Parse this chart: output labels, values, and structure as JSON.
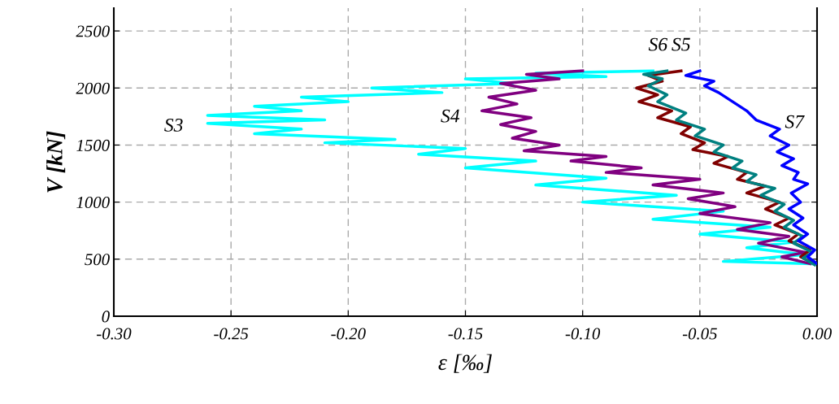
{
  "chart_data": {
    "type": "line",
    "xlabel": "ε [‰]",
    "ylabel": "V [kN]",
    "xlim": [
      -0.3,
      0.0
    ],
    "ylim": [
      0,
      2700
    ],
    "xticks": [
      {
        "value": -0.3,
        "label": "-0.30"
      },
      {
        "value": -0.25,
        "label": "-0.25"
      },
      {
        "value": -0.2,
        "label": "-0.20"
      },
      {
        "value": -0.15,
        "label": "-0.15"
      },
      {
        "value": -0.1,
        "label": "-0.10"
      },
      {
        "value": -0.05,
        "label": "-0.05"
      },
      {
        "value": 0.0,
        "label": "0.00"
      }
    ],
    "yticks": [
      0,
      500,
      1000,
      1500,
      2000,
      2500
    ],
    "grid": true,
    "line_style": "solid",
    "marker": "none",
    "series": [
      {
        "name": "S3",
        "color": "#00ffff",
        "x": [
          -0.002,
          -0.04,
          -0.005,
          -0.03,
          -0.01,
          -0.05,
          -0.02,
          -0.07,
          -0.04,
          -0.1,
          -0.06,
          -0.12,
          -0.09,
          -0.15,
          -0.12,
          -0.17,
          -0.15,
          -0.21,
          -0.18,
          -0.24,
          -0.22,
          -0.26,
          -0.21,
          -0.26,
          -0.22,
          -0.24,
          -0.2,
          -0.22,
          -0.16,
          -0.19,
          -0.13,
          -0.15,
          -0.09,
          -0.12,
          -0.07
        ],
        "values": [
          460,
          480,
          540,
          600,
          650,
          720,
          780,
          850,
          920,
          1000,
          1060,
          1150,
          1210,
          1300,
          1360,
          1420,
          1470,
          1520,
          1550,
          1600,
          1640,
          1690,
          1720,
          1760,
          1800,
          1840,
          1880,
          1920,
          1960,
          2000,
          2040,
          2080,
          2100,
          2130,
          2150
        ]
      },
      {
        "name": "S4",
        "color": "#800080",
        "x": [
          -0.003,
          -0.015,
          -0.005,
          -0.025,
          -0.012,
          -0.034,
          -0.02,
          -0.05,
          -0.035,
          -0.055,
          -0.04,
          -0.07,
          -0.05,
          -0.09,
          -0.075,
          -0.105,
          -0.09,
          -0.125,
          -0.11,
          -0.13,
          -0.12,
          -0.135,
          -0.122,
          -0.143,
          -0.128,
          -0.14,
          -0.12,
          -0.135,
          -0.11,
          -0.124,
          -0.1
        ],
        "values": [
          460,
          520,
          560,
          640,
          700,
          760,
          820,
          900,
          960,
          1030,
          1080,
          1150,
          1200,
          1260,
          1300,
          1360,
          1400,
          1450,
          1500,
          1560,
          1620,
          1680,
          1740,
          1800,
          1860,
          1920,
          1980,
          2040,
          2080,
          2120,
          2150
        ]
      },
      {
        "name": "S5",
        "color": "#800000",
        "x": [
          -0.001,
          -0.007,
          -0.003,
          -0.012,
          -0.008,
          -0.018,
          -0.012,
          -0.022,
          -0.016,
          -0.03,
          -0.022,
          -0.034,
          -0.03,
          -0.044,
          -0.038,
          -0.053,
          -0.048,
          -0.058,
          -0.054,
          -0.068,
          -0.062,
          -0.076,
          -0.068,
          -0.077,
          -0.066,
          -0.072,
          -0.058
        ],
        "values": [
          460,
          520,
          580,
          660,
          720,
          800,
          860,
          940,
          1000,
          1080,
          1140,
          1200,
          1260,
          1340,
          1400,
          1460,
          1520,
          1600,
          1660,
          1740,
          1800,
          1880,
          1940,
          2000,
          2060,
          2110,
          2150
        ]
      },
      {
        "name": "S6",
        "color": "#008080",
        "x": [
          -0.001,
          -0.006,
          -0.002,
          -0.01,
          -0.006,
          -0.014,
          -0.01,
          -0.018,
          -0.014,
          -0.024,
          -0.018,
          -0.03,
          -0.026,
          -0.036,
          -0.032,
          -0.044,
          -0.04,
          -0.052,
          -0.048,
          -0.06,
          -0.056,
          -0.068,
          -0.064,
          -0.072,
          -0.066,
          -0.074,
          -0.064
        ],
        "values": [
          450,
          510,
          560,
          640,
          700,
          780,
          840,
          920,
          980,
          1060,
          1120,
          1180,
          1240,
          1300,
          1360,
          1440,
          1500,
          1580,
          1640,
          1720,
          1780,
          1880,
          1940,
          2020,
          2080,
          2120,
          2150
        ]
      },
      {
        "name": "S7",
        "color": "#0000ff",
        "x": [
          0.0,
          -0.004,
          -0.001,
          -0.008,
          -0.004,
          -0.01,
          -0.006,
          -0.012,
          -0.007,
          -0.011,
          -0.004,
          -0.01,
          -0.008,
          -0.015,
          -0.01,
          -0.017,
          -0.012,
          -0.02,
          -0.016,
          -0.026,
          -0.03,
          -0.036,
          -0.042,
          -0.048,
          -0.044,
          -0.056,
          -0.05
        ],
        "values": [
          460,
          520,
          580,
          660,
          720,
          800,
          860,
          940,
          1000,
          1080,
          1160,
          1200,
          1260,
          1320,
          1380,
          1440,
          1500,
          1580,
          1640,
          1720,
          1800,
          1880,
          1960,
          2020,
          2060,
          2110,
          2150
        ]
      }
    ]
  }
}
